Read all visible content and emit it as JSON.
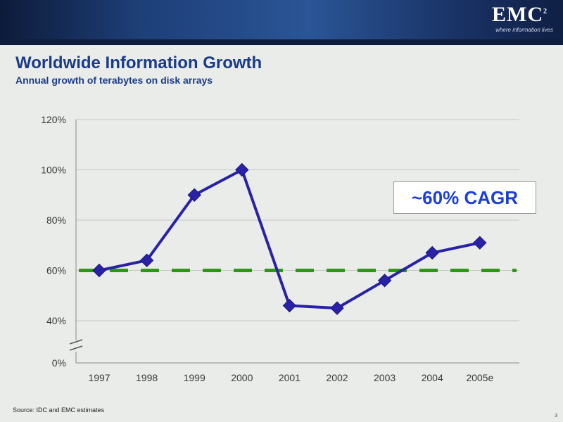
{
  "header": {
    "brand": "EMC",
    "brand_mark": "2",
    "tagline": "where information lives"
  },
  "title": "Worldwide Information Growth",
  "subtitle": "Annual growth of terabytes on disk arrays",
  "callout": "~60% CAGR",
  "source": "Source:  IDC and EMC estimates",
  "page_number": "3",
  "colors": {
    "series": "#2a22a6",
    "reference_line": "#2b9a12",
    "title": "#1a3a8a",
    "callout_text": "#1a3fd8"
  },
  "chart_data": {
    "type": "line",
    "title": "Worldwide Information Growth",
    "subtitle": "Annual growth of terabytes on disk arrays",
    "categories": [
      "1997",
      "1998",
      "1999",
      "2000",
      "2001",
      "2002",
      "2003",
      "2004",
      "2005e"
    ],
    "series": [
      {
        "values": [
          60,
          64,
          90,
          100,
          46,
          45,
          56,
          67,
          71
        ],
        "marker": "diamond"
      }
    ],
    "reference_line": {
      "value": 60,
      "style": "dashed"
    },
    "yticks": [
      "0%",
      "40%",
      "60%",
      "80%",
      "100%",
      "120%"
    ],
    "yticks_values": [
      0,
      40,
      60,
      80,
      100,
      120
    ],
    "ylim": [
      0,
      120
    ],
    "y_axis_break": true,
    "grid": true,
    "xlabel": "",
    "ylabel": ""
  }
}
